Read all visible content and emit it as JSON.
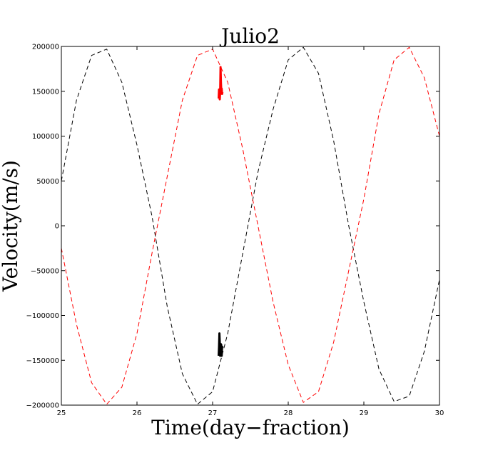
{
  "chart_data": {
    "type": "line",
    "title": "Julio2",
    "xlabel": "Time(day−fraction)",
    "ylabel": "Velocity(m/s)",
    "xlim": [
      25,
      30
    ],
    "ylim": [
      -200000,
      200000
    ],
    "xticks": [
      25,
      26,
      27,
      28,
      29,
      30
    ],
    "yticks": [
      -200000,
      -150000,
      -100000,
      -50000,
      0,
      50000,
      100000,
      150000,
      200000
    ],
    "xtick_labels": [
      "25",
      "26",
      "27",
      "28",
      "29",
      "30"
    ],
    "ytick_labels": [
      "−200000",
      "−150000",
      "−100000",
      "−50000",
      "0",
      "50000",
      "100000",
      "150000",
      "200000"
    ],
    "grid": false,
    "legend": "none",
    "series": [
      {
        "style": "dashed",
        "color": "#000000",
        "width": 1,
        "x": [
          25.0,
          25.2,
          25.4,
          25.6,
          25.8,
          26.0,
          26.2,
          26.4,
          26.6,
          26.8,
          27.0,
          27.2,
          27.4,
          27.6,
          27.8,
          28.0,
          28.2,
          28.4,
          28.6,
          28.8,
          29.0,
          29.2,
          29.4,
          29.6,
          29.8,
          30.0
        ],
        "y": [
          50000,
          140000,
          190000,
          197000,
          160000,
          90000,
          10000,
          -90000,
          -165000,
          -199000,
          -185000,
          -120000,
          -30000,
          60000,
          130000,
          185000,
          199000,
          170000,
          95000,
          0,
          -85000,
          -160000,
          -196000,
          -190000,
          -140000,
          -60000
        ]
      },
      {
        "style": "dashed",
        "color": "#ff0000",
        "width": 1,
        "x": [
          25.0,
          25.2,
          25.4,
          25.6,
          25.8,
          26.0,
          26.2,
          26.4,
          26.6,
          26.8,
          27.0,
          27.2,
          27.4,
          27.6,
          27.8,
          28.0,
          28.2,
          28.4,
          28.6,
          28.8,
          29.0,
          29.2,
          29.4,
          29.6,
          29.8,
          30.0
        ],
        "y": [
          -25000,
          -110000,
          -175000,
          -199000,
          -180000,
          -120000,
          -30000,
          55000,
          140000,
          190000,
          197000,
          160000,
          85000,
          0,
          -85000,
          -155000,
          -197000,
          -185000,
          -130000,
          -50000,
          30000,
          125000,
          185000,
          199000,
          165000,
          100000
        ]
      },
      {
        "style": "solid",
        "color": "#ff0000",
        "width": 3,
        "x": [
          27.08,
          27.085,
          27.09,
          27.095,
          27.1,
          27.105,
          27.11,
          27.115,
          27.12,
          27.125,
          27.13
        ],
        "y": [
          142000,
          152000,
          145000,
          141000,
          150000,
          177000,
          160000,
          150000,
          153000,
          147000,
          149000
        ]
      },
      {
        "style": "solid",
        "color": "#000000",
        "width": 3,
        "x": [
          27.08,
          27.085,
          27.09,
          27.095,
          27.1,
          27.105,
          27.11,
          27.115,
          27.12,
          27.125,
          27.13
        ],
        "y": [
          -145000,
          -135000,
          -120000,
          -130000,
          -145000,
          -140000,
          -132000,
          -133000,
          -145000,
          -136000,
          -134000
        ]
      }
    ]
  }
}
